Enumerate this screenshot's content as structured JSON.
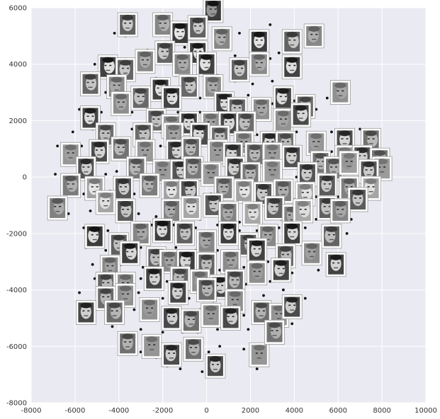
{
  "chart_data": {
    "type": "scatter",
    "title": "",
    "xlabel": "",
    "ylabel": "",
    "xlim": [
      -8000,
      10000
    ],
    "ylim": [
      -8000,
      6000
    ],
    "x_ticks": [
      -8000,
      -6000,
      -4000,
      -2000,
      0,
      2000,
      4000,
      6000,
      8000,
      10000
    ],
    "y_ticks": [
      -8000,
      -6000,
      -4000,
      -2000,
      0,
      2000,
      4000,
      6000
    ],
    "x_tick_labels": [
      "-8000",
      "-6000",
      "-4000",
      "-2000",
      "0",
      "2000",
      "4000",
      "6000",
      "8000",
      "10000"
    ],
    "y_tick_labels": [
      "-8000",
      "-6000",
      "-4000",
      "-2000",
      "0",
      "2000",
      "4000",
      "6000"
    ],
    "grid": true,
    "colors": {
      "plot_background": "#eaeaf2",
      "grid": "#ffffff",
      "point": "#111111",
      "thumbnail_frame": "#ffffff",
      "thumbnail_border": "#9a9a9a"
    },
    "thumbnails": [
      [
        300,
        5900
      ],
      [
        -3600,
        5400
      ],
      [
        -2000,
        5400
      ],
      [
        -1200,
        5100
      ],
      [
        -400,
        5300
      ],
      [
        700,
        4900
      ],
      [
        2400,
        4800
      ],
      [
        3900,
        4800
      ],
      [
        4900,
        5000
      ],
      [
        -400,
        4400
      ],
      [
        -1900,
        4400
      ],
      [
        -2800,
        4100
      ],
      [
        -4500,
        3900
      ],
      [
        -3700,
        3800
      ],
      [
        -1100,
        4000
      ],
      [
        0,
        4000
      ],
      [
        1500,
        3800
      ],
      [
        2400,
        4000
      ],
      [
        3900,
        3900
      ],
      [
        -5300,
        3300
      ],
      [
        -4100,
        3200
      ],
      [
        -2100,
        3100
      ],
      [
        -800,
        3200
      ],
      [
        300,
        3200
      ],
      [
        -1600,
        2800
      ],
      [
        -3000,
        2800
      ],
      [
        -3900,
        2600
      ],
      [
        800,
        2600
      ],
      [
        1400,
        2400
      ],
      [
        2500,
        2400
      ],
      [
        3500,
        2800
      ],
      [
        4500,
        2500
      ],
      [
        6100,
        3000
      ],
      [
        -5300,
        2100
      ],
      [
        -2300,
        2000
      ],
      [
        -1600,
        1800
      ],
      [
        -800,
        1900
      ],
      [
        -2900,
        1500
      ],
      [
        200,
        1900
      ],
      [
        1000,
        1900
      ],
      [
        1800,
        1900
      ],
      [
        3500,
        2000
      ],
      [
        4300,
        2200
      ],
      [
        -4600,
        1500
      ],
      [
        -1500,
        1500
      ],
      [
        -300,
        1500
      ],
      [
        600,
        1400
      ],
      [
        1700,
        1200
      ],
      [
        2900,
        1200
      ],
      [
        3600,
        1200
      ],
      [
        5000,
        1200
      ],
      [
        6300,
        1300
      ],
      [
        7500,
        1300
      ],
      [
        -6200,
        800
      ],
      [
        -4900,
        900
      ],
      [
        -3900,
        1000
      ],
      [
        -2800,
        900
      ],
      [
        -1400,
        900
      ],
      [
        -700,
        1000
      ],
      [
        500,
        900
      ],
      [
        1200,
        800
      ],
      [
        2200,
        800
      ],
      [
        3000,
        800
      ],
      [
        3900,
        700
      ],
      [
        5200,
        500
      ],
      [
        6300,
        700
      ],
      [
        7100,
        700
      ],
      [
        7900,
        600
      ],
      [
        8000,
        300
      ],
      [
        -5500,
        300
      ],
      [
        -3200,
        300
      ],
      [
        -2000,
        200
      ],
      [
        -1200,
        200
      ],
      [
        -600,
        300
      ],
      [
        200,
        100
      ],
      [
        1300,
        300
      ],
      [
        2000,
        100
      ],
      [
        3000,
        200
      ],
      [
        4600,
        100
      ],
      [
        5800,
        300
      ],
      [
        6500,
        500
      ],
      [
        7400,
        200
      ],
      [
        -6200,
        -300
      ],
      [
        -5100,
        -400
      ],
      [
        -3800,
        -400
      ],
      [
        -2600,
        -300
      ],
      [
        -1600,
        -500
      ],
      [
        -800,
        -500
      ],
      [
        800,
        -400
      ],
      [
        1700,
        -500
      ],
      [
        2600,
        -600
      ],
      [
        3500,
        -500
      ],
      [
        4500,
        -600
      ],
      [
        5500,
        -300
      ],
      [
        6500,
        -400
      ],
      [
        7500,
        -400
      ],
      [
        6900,
        -800
      ],
      [
        -6800,
        -1100
      ],
      [
        -4600,
        -900
      ],
      [
        -3700,
        -1200
      ],
      [
        -1600,
        -1200
      ],
      [
        -700,
        -1100
      ],
      [
        300,
        -1000
      ],
      [
        1000,
        -1300
      ],
      [
        2100,
        -1300
      ],
      [
        3100,
        -1100
      ],
      [
        3900,
        -1400
      ],
      [
        4400,
        -1200
      ],
      [
        5500,
        -1100
      ],
      [
        6100,
        -1200
      ],
      [
        -5100,
        -2100
      ],
      [
        -4000,
        -2400
      ],
      [
        -3000,
        -2000
      ],
      [
        -2000,
        -1900
      ],
      [
        -1000,
        -2000
      ],
      [
        0,
        -2300
      ],
      [
        1000,
        -2000
      ],
      [
        1900,
        -2400
      ],
      [
        2800,
        -2100
      ],
      [
        3900,
        -2000
      ],
      [
        5700,
        -2100
      ],
      [
        -4400,
        -3200
      ],
      [
        -3500,
        -2700
      ],
      [
        -2300,
        -2900
      ],
      [
        -1700,
        -3000
      ],
      [
        -900,
        -3000
      ],
      [
        0,
        -3100
      ],
      [
        1100,
        -3000
      ],
      [
        2300,
        -2600
      ],
      [
        3600,
        -2800
      ],
      [
        4800,
        -2700
      ],
      [
        5900,
        -3100
      ],
      [
        -4600,
        -3800
      ],
      [
        -3700,
        -3800
      ],
      [
        -2400,
        -3600
      ],
      [
        -1200,
        -3600
      ],
      [
        -300,
        -3700
      ],
      [
        600,
        -3900
      ],
      [
        1300,
        -3700
      ],
      [
        2300,
        -3400
      ],
      [
        3400,
        -3300
      ],
      [
        -4600,
        -4300
      ],
      [
        -3700,
        -4200
      ],
      [
        -1300,
        -4100
      ],
      [
        0,
        -4000
      ],
      [
        1300,
        -4400
      ],
      [
        -5500,
        -4800
      ],
      [
        -4200,
        -4800
      ],
      [
        -2600,
        -4700
      ],
      [
        -1600,
        -5000
      ],
      [
        -700,
        -5100
      ],
      [
        200,
        -4900
      ],
      [
        1100,
        -5000
      ],
      [
        2500,
        -4800
      ],
      [
        3300,
        -4900
      ],
      [
        3900,
        -4600
      ],
      [
        -3600,
        -5900
      ],
      [
        -2500,
        -6000
      ],
      [
        -1600,
        -6300
      ],
      [
        -600,
        -6100
      ],
      [
        2400,
        -6300
      ],
      [
        400,
        -6700
      ],
      [
        3100,
        -5500
      ]
    ],
    "points": [
      [
        -4200,
        5100
      ],
      [
        -3700,
        5000
      ],
      [
        -300,
        5600
      ],
      [
        1500,
        5100
      ],
      [
        2900,
        5400
      ],
      [
        3600,
        4900
      ],
      [
        4600,
        4700
      ],
      [
        -2700,
        4500
      ],
      [
        -1800,
        4700
      ],
      [
        -1000,
        4600
      ],
      [
        200,
        4300
      ],
      [
        1300,
        4300
      ],
      [
        2900,
        4200
      ],
      [
        3300,
        4400
      ],
      [
        -5100,
        4000
      ],
      [
        -4100,
        3800
      ],
      [
        -2300,
        3500
      ],
      [
        -1400,
        3600
      ],
      [
        500,
        3600
      ],
      [
        1300,
        3400
      ],
      [
        2100,
        3300
      ],
      [
        3000,
        3400
      ],
      [
        -4600,
        3000
      ],
      [
        -3400,
        3000
      ],
      [
        -2700,
        3000
      ],
      [
        -1300,
        3000
      ],
      [
        -300,
        2800
      ],
      [
        1000,
        2900
      ],
      [
        1900,
        2900
      ],
      [
        3000,
        2600
      ],
      [
        4000,
        2700
      ],
      [
        5500,
        2800
      ],
      [
        -5800,
        2400
      ],
      [
        -4800,
        2300
      ],
      [
        -3400,
        2300
      ],
      [
        -1300,
        2300
      ],
      [
        -300,
        2300
      ],
      [
        400,
        2400
      ],
      [
        1200,
        2200
      ],
      [
        2200,
        2200
      ],
      [
        3100,
        2100
      ],
      [
        3900,
        2300
      ],
      [
        5000,
        2400
      ],
      [
        -6100,
        1600
      ],
      [
        -5200,
        1700
      ],
      [
        -3400,
        1700
      ],
      [
        -2100,
        1600
      ],
      [
        -1000,
        1600
      ],
      [
        100,
        1600
      ],
      [
        1300,
        1500
      ],
      [
        2300,
        1500
      ],
      [
        3200,
        1500
      ],
      [
        4100,
        1600
      ],
      [
        5700,
        1600
      ],
      [
        7000,
        1700
      ],
      [
        -6800,
        1100
      ],
      [
        -5700,
        1100
      ],
      [
        -4300,
        1200
      ],
      [
        -3300,
        1200
      ],
      [
        -2100,
        1100
      ],
      [
        -1100,
        1200
      ],
      [
        0,
        1200
      ],
      [
        900,
        1100
      ],
      [
        1900,
        1000
      ],
      [
        2600,
        900
      ],
      [
        3300,
        900
      ],
      [
        4300,
        900
      ],
      [
        5700,
        900
      ],
      [
        6800,
        1000
      ],
      [
        8300,
        800
      ],
      [
        -6600,
        600
      ],
      [
        -5800,
        600
      ],
      [
        -4500,
        600
      ],
      [
        -3500,
        600
      ],
      [
        -2400,
        600
      ],
      [
        -1700,
        500
      ],
      [
        -1000,
        500
      ],
      [
        -200,
        600
      ],
      [
        700,
        600
      ],
      [
        1600,
        500
      ],
      [
        2500,
        500
      ],
      [
        3400,
        500
      ],
      [
        4200,
        400
      ],
      [
        5000,
        800
      ],
      [
        6000,
        600
      ],
      [
        7000,
        400
      ],
      [
        -6900,
        100
      ],
      [
        -5900,
        0
      ],
      [
        -4600,
        100
      ],
      [
        -4100,
        200
      ],
      [
        -2900,
        0
      ],
      [
        -1700,
        100
      ],
      [
        -900,
        0
      ],
      [
        -300,
        -100
      ],
      [
        600,
        0
      ],
      [
        1000,
        100
      ],
      [
        1600,
        -100
      ],
      [
        2400,
        0
      ],
      [
        3300,
        -100
      ],
      [
        4100,
        0
      ],
      [
        5200,
        -100
      ],
      [
        6100,
        0
      ],
      [
        7000,
        -100
      ],
      [
        7900,
        -100
      ],
      [
        -6500,
        -500
      ],
      [
        -5600,
        -600
      ],
      [
        -4400,
        -500
      ],
      [
        -3300,
        -600
      ],
      [
        -2200,
        -600
      ],
      [
        -1200,
        -700
      ],
      [
        -400,
        -700
      ],
      [
        200,
        -600
      ],
      [
        1200,
        -700
      ],
      [
        2100,
        -800
      ],
      [
        3000,
        -800
      ],
      [
        4000,
        -800
      ],
      [
        5000,
        -700
      ],
      [
        6000,
        -700
      ],
      [
        7300,
        -800
      ],
      [
        -6300,
        -1300
      ],
      [
        -5300,
        -1200
      ],
      [
        -4100,
        -1300
      ],
      [
        -3100,
        -1300
      ],
      [
        -2300,
        -1400
      ],
      [
        -1200,
        -1400
      ],
      [
        -300,
        -1500
      ],
      [
        600,
        -1500
      ],
      [
        1500,
        -1600
      ],
      [
        2500,
        -1600
      ],
      [
        3400,
        -1500
      ],
      [
        4300,
        -1600
      ],
      [
        5000,
        -1500
      ],
      [
        6600,
        -1500
      ],
      [
        -5600,
        -1800
      ],
      [
        -4500,
        -1900
      ],
      [
        -3400,
        -1800
      ],
      [
        -2500,
        -1700
      ],
      [
        -1500,
        -1700
      ],
      [
        -500,
        -1800
      ],
      [
        500,
        -1700
      ],
      [
        1500,
        -1900
      ],
      [
        2300,
        -1900
      ],
      [
        3300,
        -1800
      ],
      [
        4500,
        -1800
      ],
      [
        5300,
        -1900
      ],
      [
        6400,
        -2000
      ],
      [
        -5500,
        -2500
      ],
      [
        -4600,
        -2600
      ],
      [
        -3000,
        -2500
      ],
      [
        -1400,
        -2500
      ],
      [
        -500,
        -2600
      ],
      [
        500,
        -2600
      ],
      [
        1500,
        -2600
      ],
      [
        2700,
        -2600
      ],
      [
        3200,
        -2500
      ],
      [
        4300,
        -2400
      ],
      [
        5200,
        -2400
      ],
      [
        -5200,
        -3100
      ],
      [
        -3900,
        -3100
      ],
      [
        -2900,
        -3200
      ],
      [
        -1400,
        -3300
      ],
      [
        -400,
        -3400
      ],
      [
        600,
        -3300
      ],
      [
        1700,
        -3200
      ],
      [
        2800,
        -3000
      ],
      [
        3900,
        -2900
      ],
      [
        5100,
        -3300
      ],
      [
        -5100,
        -3600
      ],
      [
        -4100,
        -3500
      ],
      [
        -3000,
        -3600
      ],
      [
        -1800,
        -3700
      ],
      [
        -700,
        -3700
      ],
      [
        400,
        -3600
      ],
      [
        1800,
        -3800
      ],
      [
        2900,
        -3700
      ],
      [
        3900,
        -3400
      ],
      [
        -5800,
        -4100
      ],
      [
        -4100,
        -4000
      ],
      [
        -3100,
        -4100
      ],
      [
        -2000,
        -4300
      ],
      [
        -800,
        -4300
      ],
      [
        300,
        -4400
      ],
      [
        1700,
        -4200
      ],
      [
        2600,
        -4200
      ],
      [
        3500,
        -4000
      ],
      [
        4500,
        -4300
      ],
      [
        -5000,
        -4500
      ],
      [
        -3300,
        -4700
      ],
      [
        -2200,
        -4800
      ],
      [
        -1000,
        -4900
      ],
      [
        -300,
        -4700
      ],
      [
        700,
        -4700
      ],
      [
        1700,
        -4900
      ],
      [
        2900,
        -4800
      ],
      [
        3900,
        -5200
      ],
      [
        -4300,
        -5300
      ],
      [
        -3000,
        -5400
      ],
      [
        -2000,
        -5500
      ],
      [
        -1100,
        -5500
      ],
      [
        -400,
        -5500
      ],
      [
        500,
        -5400
      ],
      [
        1900,
        -5400
      ],
      [
        2800,
        -5600
      ],
      [
        3500,
        -5400
      ],
      [
        -3900,
        -6000
      ],
      [
        -3000,
        -6200
      ],
      [
        -2300,
        -6400
      ],
      [
        -1200,
        -6100
      ],
      [
        -900,
        -6400
      ],
      [
        100,
        -6200
      ],
      [
        600,
        -6000
      ],
      [
        1700,
        -6100
      ],
      [
        2700,
        -6300
      ],
      [
        -1800,
        -6700
      ],
      [
        -1200,
        -6800
      ],
      [
        -200,
        -6900
      ],
      [
        700,
        -7000
      ],
      [
        2300,
        -6800
      ]
    ]
  }
}
